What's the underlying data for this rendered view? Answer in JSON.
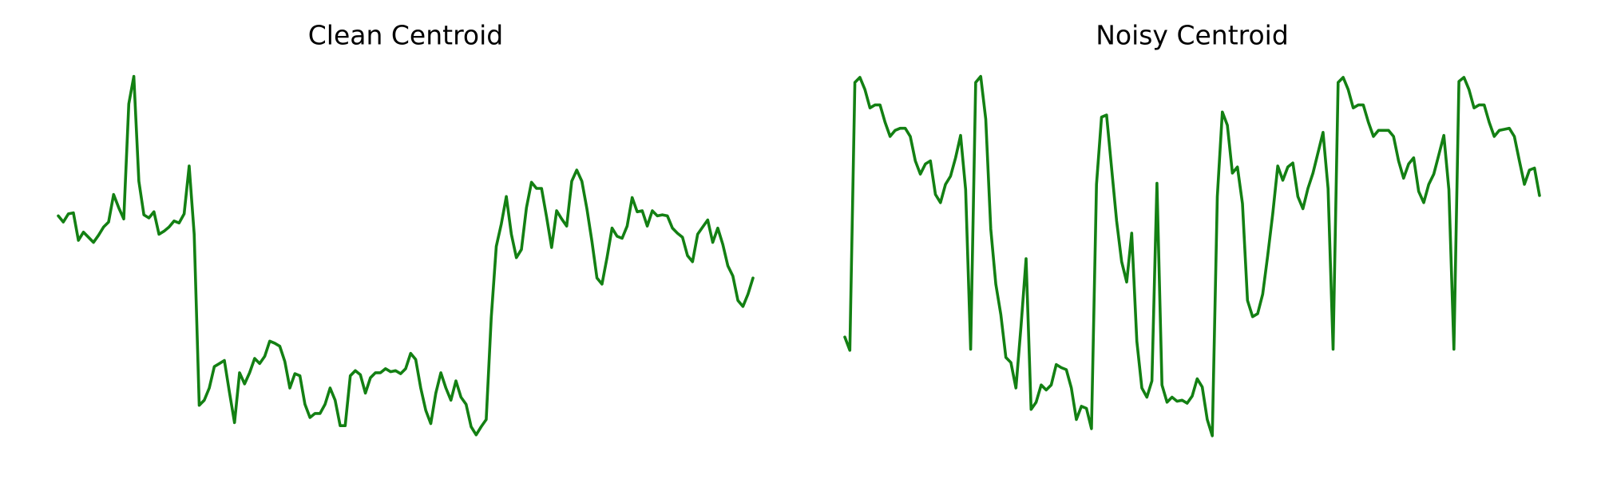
{
  "chart_data": [
    {
      "type": "line",
      "title": "Clean Centroid",
      "color": "#138013",
      "ylim": [
        0,
        450
      ],
      "values": [
        238,
        232,
        240,
        241,
        214,
        222,
        217,
        212,
        219,
        227,
        232,
        259,
        246,
        235,
        348,
        375,
        272,
        239,
        236,
        242,
        220,
        223,
        227,
        233,
        231,
        240,
        287,
        220,
        52,
        57,
        69,
        90,
        93,
        96,
        65,
        35,
        84,
        73,
        84,
        98,
        93,
        100,
        115,
        113,
        110,
        95,
        69,
        83,
        81,
        53,
        40,
        44,
        44,
        53,
        69,
        57,
        32,
        32,
        81,
        86,
        82,
        64,
        79,
        84,
        84,
        88,
        85,
        86,
        83,
        88,
        103,
        97,
        69,
        47,
        34,
        64,
        84,
        69,
        57,
        76,
        60,
        53,
        31,
        23,
        31,
        38,
        138,
        208,
        230,
        257,
        220,
        197,
        205,
        246,
        271,
        265,
        265,
        237,
        207,
        243,
        235,
        228,
        272,
        283,
        272,
        245,
        213,
        177,
        171,
        197,
        226,
        218,
        216,
        228,
        256,
        242,
        243,
        228,
        243,
        238,
        239,
        238,
        226,
        221,
        217,
        199,
        193,
        220,
        227,
        234,
        212,
        226,
        210,
        189,
        179,
        155,
        149,
        161,
        177
      ]
    },
    {
      "type": "line",
      "title": "Noisy Centroid",
      "color": "#138013",
      "ylim": [
        0,
        450
      ],
      "values": [
        119,
        106,
        369,
        374,
        362,
        344,
        347,
        347,
        330,
        316,
        322,
        324,
        324,
        316,
        292,
        279,
        289,
        292,
        259,
        251,
        269,
        277,
        295,
        317,
        264,
        107,
        369,
        375,
        333,
        225,
        171,
        141,
        99,
        94,
        69,
        130,
        196,
        48,
        55,
        72,
        67,
        72,
        92,
        89,
        87,
        69,
        38,
        51,
        49,
        29,
        269,
        335,
        337,
        285,
        233,
        193,
        173,
        221,
        115,
        69,
        60,
        76,
        270,
        72,
        55,
        60,
        56,
        57,
        54,
        61,
        78,
        70,
        38,
        22,
        257,
        340,
        327,
        280,
        286,
        250,
        155,
        139,
        142,
        161,
        199,
        240,
        287,
        273,
        286,
        290,
        257,
        245,
        265,
        280,
        300,
        320,
        265,
        107,
        369,
        374,
        362,
        344,
        347,
        347,
        330,
        316,
        322,
        322,
        322,
        316,
        292,
        275,
        289,
        295,
        262,
        251,
        269,
        279,
        298,
        317,
        264,
        107,
        370,
        374,
        362,
        344,
        347,
        347,
        330,
        316,
        322,
        323,
        324,
        316,
        292,
        269,
        283,
        285,
        258
      ]
    }
  ]
}
